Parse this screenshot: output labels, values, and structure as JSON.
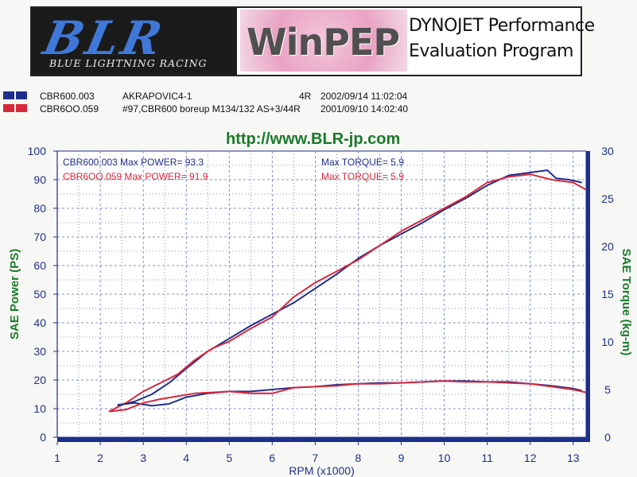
{
  "header": {
    "logo_text": "BLR",
    "logo_subtitle": "BLUE LIGHTNING RACING",
    "product": "WinPEP",
    "title_line1": "DYNOJET Performance",
    "title_line2": "Evaluation Program"
  },
  "runs": [
    {
      "name": "CBR600.003",
      "description": "AKRAPOVIC4-1",
      "gear": "4R",
      "date": "2002/09/14 11:02:04",
      "color": "#1e2f8a"
    },
    {
      "name": "CBR6OO.059",
      "description": "#97,CBR600 boreup M134/132 AS+3/44R",
      "gear": "",
      "date": "2001/09/10 14:02:40",
      "color": "#d8283a"
    }
  ],
  "url": "http://www.BLR-jp.com",
  "chart_data": {
    "type": "line",
    "xlabel": "RPM (x1000)",
    "ylabel": "SAE Power (PS)",
    "y2label": "SAE Torque (kg-m)",
    "xlim": [
      1,
      13.3
    ],
    "ylim": [
      0,
      100
    ],
    "y2lim": [
      0,
      30
    ],
    "xticks": [
      1,
      2,
      3,
      4,
      5,
      6,
      7,
      8,
      9,
      10,
      11,
      12,
      13
    ],
    "yticks": [
      0,
      10,
      20,
      30,
      40,
      50,
      60,
      70,
      80,
      90,
      100
    ],
    "y2ticks": [
      0,
      5,
      10,
      15,
      20,
      25,
      30
    ],
    "grid": true,
    "annotations": {
      "power_blue": "CBR600.003  Max POWER= 93.3",
      "power_red": "CBR6OO.059  Max POWER= 91.9",
      "torque_blue": "Max TORQUE= 5.9",
      "torque_red": "Max TORQUE= 5.9"
    },
    "series": [
      {
        "name": "CBR600.003 Power",
        "axis": "left",
        "color": "#1e2f8a",
        "x": [
          2.4,
          2.8,
          3.2,
          3.6,
          4.0,
          4.5,
          5.0,
          5.5,
          6.0,
          6.5,
          7.0,
          7.5,
          8.0,
          8.5,
          9.0,
          9.5,
          10.0,
          10.5,
          11.0,
          11.5,
          12.0,
          12.4,
          12.6,
          12.9,
          13.2
        ],
        "values": [
          11,
          12.5,
          15,
          19,
          24,
          30,
          34.5,
          39,
          43,
          47,
          52,
          57,
          62.5,
          67,
          71,
          75,
          79.5,
          83.5,
          88,
          91.5,
          92.5,
          93.3,
          90.5,
          90,
          89
        ]
      },
      {
        "name": "CBR6OO.059 Power",
        "axis": "left",
        "color": "#d8283a",
        "x": [
          2.2,
          2.6,
          3.0,
          3.4,
          3.8,
          4.2,
          4.6,
          5.0,
          5.5,
          6.0,
          6.5,
          7.0,
          7.5,
          8.0,
          8.5,
          9.0,
          9.5,
          10.0,
          10.5,
          11.0,
          11.5,
          12.0,
          12.5,
          13.0,
          13.3
        ],
        "values": [
          9,
          12,
          16,
          19,
          22,
          27,
          31,
          33.5,
          38,
          42,
          49,
          54,
          58,
          62,
          67,
          72,
          76,
          80,
          84,
          89,
          91,
          91.9,
          90,
          89,
          86.5
        ]
      },
      {
        "name": "CBR600.003 Torque",
        "axis": "right",
        "color": "#1e2f8a",
        "x": [
          2.4,
          2.8,
          3.2,
          3.6,
          4.0,
          4.5,
          5.0,
          5.5,
          6.0,
          6.5,
          7.0,
          7.5,
          8.0,
          8.5,
          9.0,
          9.5,
          10.0,
          10.5,
          11.0,
          11.5,
          12.0,
          12.5,
          13.0,
          13.2
        ],
        "values": [
          3.4,
          3.6,
          3.3,
          3.5,
          4.2,
          4.6,
          4.8,
          4.8,
          5.0,
          5.2,
          5.3,
          5.5,
          5.6,
          5.7,
          5.7,
          5.8,
          5.9,
          5.9,
          5.8,
          5.8,
          5.6,
          5.4,
          5.1,
          4.9
        ]
      },
      {
        "name": "CBR6OO.059 Torque",
        "axis": "right",
        "color": "#d8283a",
        "x": [
          2.2,
          2.6,
          3.0,
          3.4,
          3.8,
          4.2,
          4.6,
          5.0,
          5.5,
          6.0,
          6.5,
          7.0,
          7.5,
          8.0,
          8.5,
          9.0,
          9.5,
          10.0,
          10.5,
          11.0,
          11.5,
          12.0,
          12.5,
          13.0,
          13.3
        ],
        "values": [
          2.7,
          2.9,
          3.6,
          4.0,
          4.3,
          4.6,
          4.7,
          4.8,
          4.6,
          4.6,
          5.2,
          5.3,
          5.4,
          5.6,
          5.6,
          5.7,
          5.8,
          5.9,
          5.8,
          5.8,
          5.7,
          5.6,
          5.3,
          5.0,
          4.7
        ]
      }
    ]
  }
}
